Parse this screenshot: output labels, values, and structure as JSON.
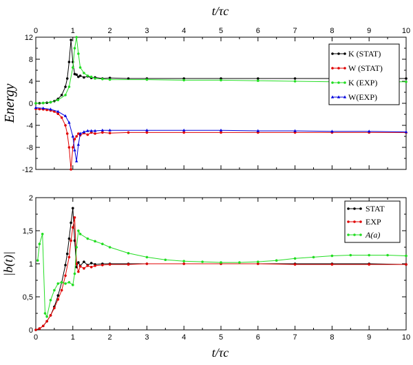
{
  "chart_data": [
    {
      "type": "line",
      "title": "",
      "xlabel_top": "t/τc",
      "xlabel": "",
      "ylabel": "Energy",
      "xlim": [
        0,
        10
      ],
      "ylim": [
        -12,
        12
      ],
      "xticks": [
        "0",
        "1",
        "2",
        "3",
        "4",
        "5",
        "6",
        "7",
        "8",
        "9",
        "10"
      ],
      "yticks": [
        "-12",
        "-8",
        "-4",
        "0",
        "4",
        "8",
        "12"
      ],
      "top_xticks": [
        "0",
        "1",
        "2",
        "3",
        "4",
        "5",
        "6",
        "7",
        "8",
        "9",
        "10"
      ],
      "legend_position": "top-right",
      "series": [
        {
          "name": "K (STAT)",
          "color": "#000000",
          "marker": "circle",
          "x": [
            0,
            0.1,
            0.2,
            0.3,
            0.4,
            0.5,
            0.6,
            0.7,
            0.8,
            0.85,
            0.9,
            0.95,
            1.0,
            1.05,
            1.1,
            1.15,
            1.2,
            1.3,
            1.4,
            1.5,
            1.6,
            1.8,
            2.0,
            2.5,
            3,
            4,
            5,
            6,
            7,
            8,
            9,
            10
          ],
          "y": [
            0,
            0.02,
            0.05,
            0.1,
            0.2,
            0.4,
            0.8,
            1.5,
            3,
            4.5,
            7.5,
            11.5,
            7.5,
            5.3,
            5.2,
            4.8,
            5.0,
            4.7,
            4.9,
            4.6,
            4.7,
            4.5,
            4.6,
            4.5,
            4.5,
            4.5,
            4.5,
            4.5,
            4.5,
            4.5,
            4.5,
            4.5
          ]
        },
        {
          "name": "W (STAT)",
          "color": "#e00000",
          "marker": "circle",
          "x": [
            0,
            0.1,
            0.2,
            0.3,
            0.4,
            0.5,
            0.6,
            0.7,
            0.8,
            0.85,
            0.9,
            0.95,
            1.0,
            1.05,
            1.1,
            1.15,
            1.2,
            1.3,
            1.4,
            1.5,
            1.6,
            1.8,
            2.0,
            2.5,
            3,
            4,
            5,
            6,
            7,
            8,
            9,
            10
          ],
          "y": [
            -1,
            -1.05,
            -1.1,
            -1.2,
            -1.3,
            -1.5,
            -1.9,
            -2.6,
            -4,
            -5.5,
            -8,
            -12,
            -8,
            -6.5,
            -6,
            -5.5,
            -5.8,
            -5.4,
            -5.7,
            -5.3,
            -5.5,
            -5.3,
            -5.4,
            -5.3,
            -5.3,
            -5.3,
            -5.3,
            -5.3,
            -5.3,
            -5.3,
            -5.3,
            -5.3
          ]
        },
        {
          "name": "K (EXP)",
          "color": "#22dd22",
          "marker": "circle",
          "x": [
            0,
            0.2,
            0.4,
            0.6,
            0.8,
            0.9,
            1.0,
            1.05,
            1.1,
            1.15,
            1.2,
            1.3,
            1.4,
            1.5,
            1.6,
            1.8,
            2,
            3,
            4,
            5,
            6,
            7,
            8,
            9,
            10
          ],
          "y": [
            0,
            0.05,
            0.2,
            0.6,
            1.5,
            3,
            6.5,
            10,
            12,
            9,
            6.5,
            5.5,
            5,
            4.8,
            4.5,
            4.4,
            4.3,
            4.3,
            4.2,
            4.2,
            4.1,
            4.0,
            3.9,
            3.9,
            3.9
          ]
        },
        {
          "name": "W(EXP)",
          "color": "#0000dd",
          "marker": "triangle",
          "x": [
            0,
            0.2,
            0.4,
            0.6,
            0.8,
            0.9,
            1.0,
            1.05,
            1.1,
            1.15,
            1.2,
            1.3,
            1.4,
            1.5,
            1.6,
            1.8,
            2,
            3,
            4,
            5,
            6,
            7,
            8,
            9,
            10
          ],
          "y": [
            -0.8,
            -0.9,
            -1.1,
            -1.5,
            -2.3,
            -3.5,
            -6,
            -8.5,
            -10.5,
            -7.5,
            -5.5,
            -5.2,
            -5.0,
            -5.0,
            -5.0,
            -4.9,
            -4.9,
            -4.9,
            -4.9,
            -4.9,
            -5.0,
            -5.0,
            -5.1,
            -5.1,
            -5.2
          ]
        }
      ]
    },
    {
      "type": "line",
      "title": "",
      "xlabel": "t/τc",
      "ylabel": "|b(t)|",
      "xlim": [
        0,
        10
      ],
      "ylim": [
        0,
        2
      ],
      "xticks": [
        "0",
        "1",
        "2",
        "3",
        "4",
        "5",
        "6",
        "7",
        "8",
        "9",
        "10"
      ],
      "yticks": [
        "0",
        "0,5",
        "1",
        "1,5",
        "2"
      ],
      "legend_position": "top-right",
      "series": [
        {
          "name": "STAT",
          "color": "#000000",
          "marker": "circle",
          "x": [
            0,
            0.1,
            0.2,
            0.3,
            0.4,
            0.5,
            0.6,
            0.7,
            0.8,
            0.85,
            0.9,
            0.95,
            1.0,
            1.05,
            1.1,
            1.15,
            1.2,
            1.3,
            1.4,
            1.5,
            1.6,
            1.8,
            2,
            2.5,
            3,
            4,
            5,
            6,
            7,
            8,
            9,
            10
          ],
          "y": [
            0,
            0.02,
            0.06,
            0.13,
            0.22,
            0.35,
            0.52,
            0.72,
            0.98,
            1.15,
            1.38,
            1.62,
            1.84,
            1.35,
            0.95,
            1.02,
            0.97,
            1.03,
            0.98,
            1.01,
            0.99,
            1.0,
            1.0,
            1.0,
            1.0,
            1.0,
            1.0,
            1.0,
            1.0,
            1.0,
            1.0,
            0.99
          ]
        },
        {
          "name": "EXP",
          "color": "#e00000",
          "marker": "circle",
          "x": [
            0,
            0.1,
            0.2,
            0.3,
            0.4,
            0.5,
            0.6,
            0.7,
            0.8,
            0.9,
            0.95,
            1.0,
            1.05,
            1.1,
            1.15,
            1.2,
            1.3,
            1.4,
            1.5,
            1.6,
            1.8,
            2,
            2.5,
            3,
            4,
            5,
            6,
            7,
            8,
            9,
            10
          ],
          "y": [
            0,
            0.02,
            0.06,
            0.13,
            0.22,
            0.33,
            0.46,
            0.6,
            0.82,
            1.1,
            1.35,
            1.55,
            1.7,
            1.0,
            0.88,
            0.96,
            0.93,
            0.97,
            0.95,
            0.97,
            0.98,
            0.99,
            0.99,
            1.0,
            1.0,
            1.0,
            1.0,
            0.99,
            0.99,
            0.99,
            0.99
          ]
        },
        {
          "name": "A(a)",
          "color": "#22dd22",
          "marker": "circle",
          "x": [
            0.05,
            0.1,
            0.18,
            0.25,
            0.3,
            0.4,
            0.5,
            0.6,
            0.7,
            0.8,
            0.9,
            1.0,
            1.05,
            1.1,
            1.15,
            1.2,
            1.4,
            1.6,
            1.8,
            2,
            2.5,
            3,
            3.5,
            4,
            4.5,
            5,
            5.5,
            6,
            6.5,
            7,
            7.5,
            8,
            8.5,
            9,
            9.5,
            10
          ],
          "y": [
            1.05,
            1.3,
            1.45,
            0.25,
            0.2,
            0.45,
            0.6,
            0.7,
            0.72,
            0.7,
            0.72,
            0.68,
            0.85,
            1.25,
            1.5,
            1.45,
            1.38,
            1.34,
            1.3,
            1.25,
            1.16,
            1.1,
            1.06,
            1.04,
            1.03,
            1.02,
            1.02,
            1.03,
            1.05,
            1.08,
            1.1,
            1.12,
            1.13,
            1.13,
            1.13,
            1.12
          ]
        }
      ]
    }
  ]
}
